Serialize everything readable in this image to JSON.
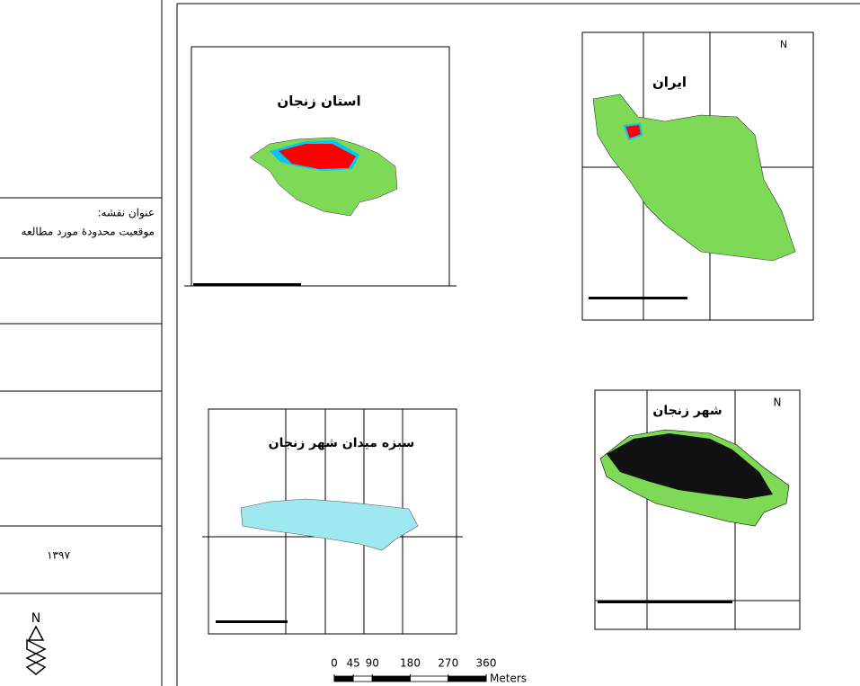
{
  "sidebar": {
    "map_title_label": "عنوان نقشه:",
    "map_title": "موقعیت محدودهٔ مورد مطالعه",
    "year": "۱۳۹۷",
    "north": "N"
  },
  "panels": [
    {
      "title": "استان زنجان"
    },
    {
      "title": "ایران",
      "north": "N"
    },
    {
      "title": "سبزه میدان شهر زنجان"
    },
    {
      "title": "شهر زنجان",
      "north": "N"
    }
  ],
  "scale_bar": {
    "ticks": [
      0,
      45,
      90,
      180,
      270,
      360
    ],
    "unit": "Meters"
  }
}
